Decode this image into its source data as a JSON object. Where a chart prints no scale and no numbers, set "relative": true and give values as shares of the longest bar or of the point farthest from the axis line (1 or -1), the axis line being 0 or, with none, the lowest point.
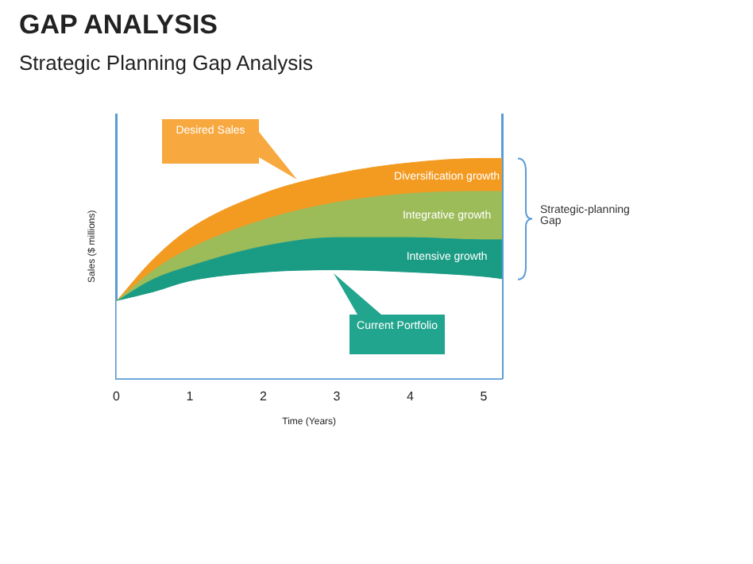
{
  "chart_data": {
    "type": "area",
    "stacked": true,
    "relative": true,
    "title": "GAP ANALYSIS",
    "subtitle": "Strategic Planning Gap Analysis",
    "xlabel": "Time (Years)",
    "ylabel": "Sales ($ millions)",
    "x": [
      0,
      0.5,
      1,
      2,
      3,
      4,
      5,
      5.25
    ],
    "xlim": [
      0,
      5.25
    ],
    "xticks": [
      0,
      1,
      2,
      3,
      4,
      5
    ],
    "grid": false,
    "legend": false,
    "marker": "none",
    "series": [
      {
        "color": "#ffffff",
        "values": [
          0.35,
          0.39,
          0.44,
          0.48,
          0.49,
          0.48,
          0.46,
          0.45
        ]
      },
      {
        "name": "Intensive growth",
        "color": "#1a9b84",
        "values": [
          0,
          0.06,
          0.07,
          0.12,
          0.15,
          0.16,
          0.17,
          0.18
        ]
      },
      {
        "name": "Integrative growth",
        "color": "#9cbb59",
        "values": [
          0,
          0.04,
          0.08,
          0.12,
          0.16,
          0.2,
          0.22,
          0.22
        ]
      },
      {
        "name": "Diversification growth",
        "color": "#f39a21",
        "values": [
          0,
          0.05,
          0.09,
          0.12,
          0.13,
          0.14,
          0.15,
          0.15
        ]
      }
    ],
    "annotations": [
      "Desired Sales",
      "Current Portfolio",
      "Strategic-planning Gap"
    ]
  }
}
